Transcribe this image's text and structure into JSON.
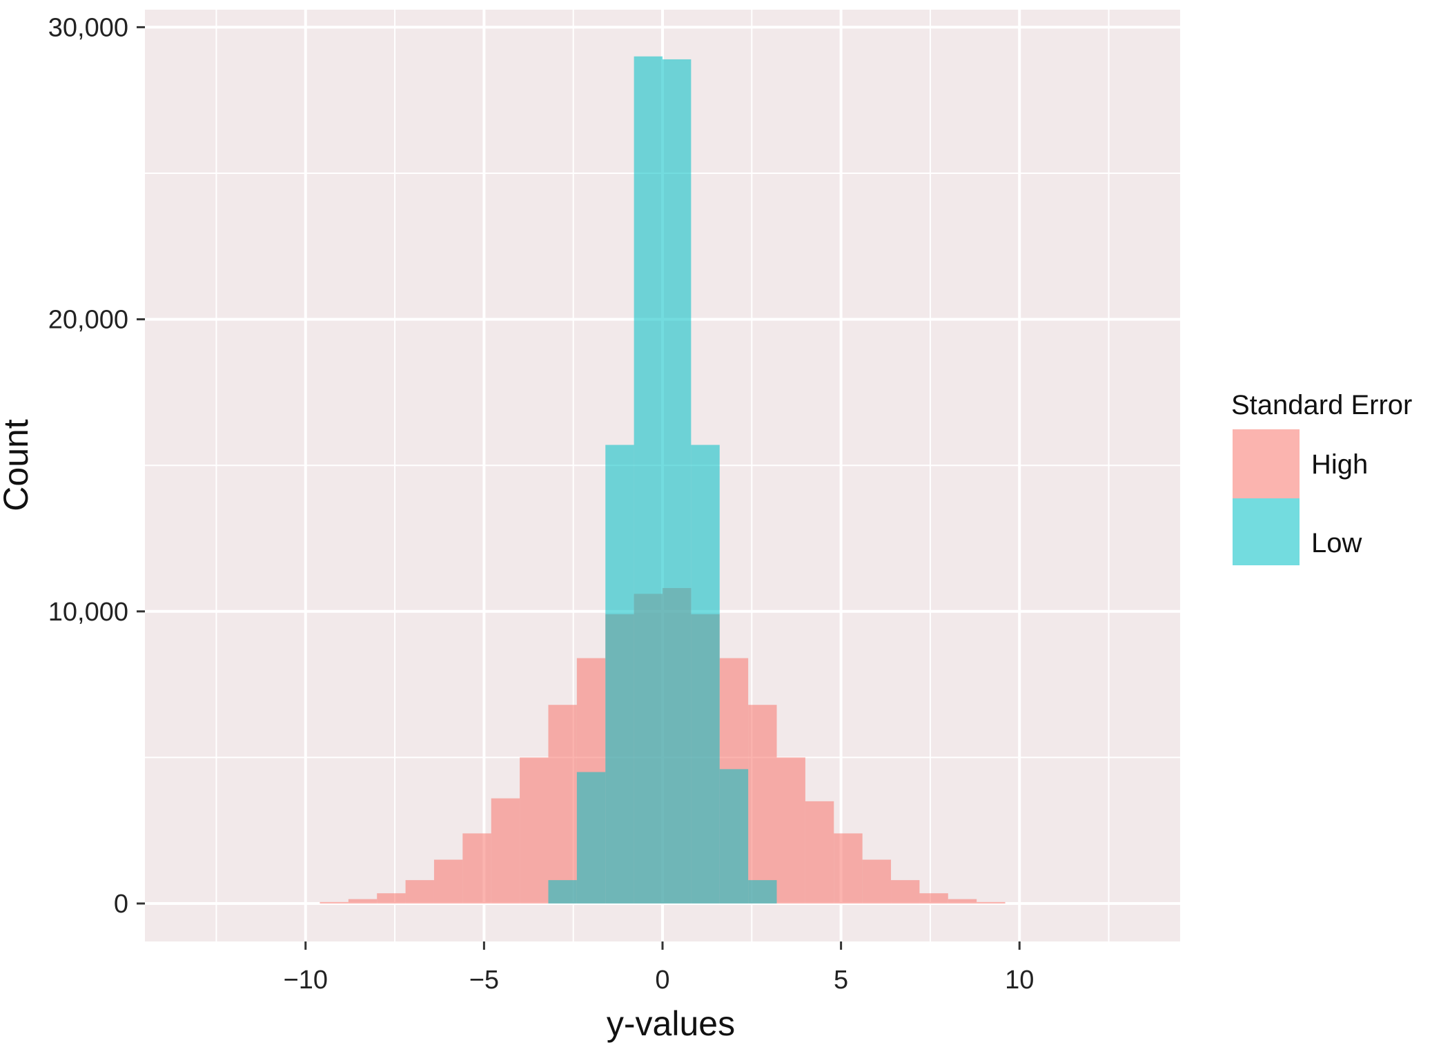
{
  "chart_data": {
    "type": "histogram",
    "xlabel": "y-values",
    "ylabel": "Count",
    "xlim": [
      -14.5,
      14.5
    ],
    "ylim": [
      -1300,
      30600
    ],
    "x_ticks": [
      {
        "value": -10,
        "label": "−10"
      },
      {
        "value": -5,
        "label": "−5"
      },
      {
        "value": 0,
        "label": "0"
      },
      {
        "value": 5,
        "label": "5"
      },
      {
        "value": 10,
        "label": "10"
      }
    ],
    "y_ticks": [
      {
        "value": 0,
        "label": "0"
      },
      {
        "value": 10000,
        "label": "10,000"
      },
      {
        "value": 20000,
        "label": "20,000"
      },
      {
        "value": 30000,
        "label": "30,000"
      }
    ],
    "grid": true,
    "bin_width": 0.8,
    "series": [
      {
        "name": "High",
        "color": "#F8766D",
        "bins": [
          {
            "x": -9.6,
            "count": 50
          },
          {
            "x": -8.8,
            "count": 150
          },
          {
            "x": -8.0,
            "count": 350
          },
          {
            "x": -7.2,
            "count": 800
          },
          {
            "x": -6.4,
            "count": 1500
          },
          {
            "x": -5.6,
            "count": 2400
          },
          {
            "x": -4.8,
            "count": 3600
          },
          {
            "x": -4.0,
            "count": 5000
          },
          {
            "x": -3.2,
            "count": 6800
          },
          {
            "x": -2.4,
            "count": 8400
          },
          {
            "x": -1.6,
            "count": 9900
          },
          {
            "x": -0.8,
            "count": 10600
          },
          {
            "x": 0.0,
            "count": 10800
          },
          {
            "x": 0.8,
            "count": 9900
          },
          {
            "x": 1.6,
            "count": 8400
          },
          {
            "x": 2.4,
            "count": 6800
          },
          {
            "x": 3.2,
            "count": 5000
          },
          {
            "x": 4.0,
            "count": 3500
          },
          {
            "x": 4.8,
            "count": 2400
          },
          {
            "x": 5.6,
            "count": 1500
          },
          {
            "x": 6.4,
            "count": 800
          },
          {
            "x": 7.2,
            "count": 350
          },
          {
            "x": 8.0,
            "count": 150
          },
          {
            "x": 8.8,
            "count": 50
          }
        ]
      },
      {
        "name": "Low",
        "color": "#00BFC4",
        "bins": [
          {
            "x": -3.2,
            "count": 800
          },
          {
            "x": -2.4,
            "count": 4500
          },
          {
            "x": -1.6,
            "count": 15700
          },
          {
            "x": -0.8,
            "count": 29000
          },
          {
            "x": 0.0,
            "count": 28900
          },
          {
            "x": 0.8,
            "count": 15700
          },
          {
            "x": 1.6,
            "count": 4600
          },
          {
            "x": 2.4,
            "count": 800
          }
        ]
      }
    ],
    "legend": {
      "title": "Standard Error",
      "position": "right",
      "items": [
        {
          "label": "High",
          "color": "#F8766D"
        },
        {
          "label": "Low",
          "color": "#00BFC4"
        }
      ]
    },
    "colors": {
      "panel_background": "#F2E9EA",
      "grid_line": "#FFFFFF"
    }
  }
}
